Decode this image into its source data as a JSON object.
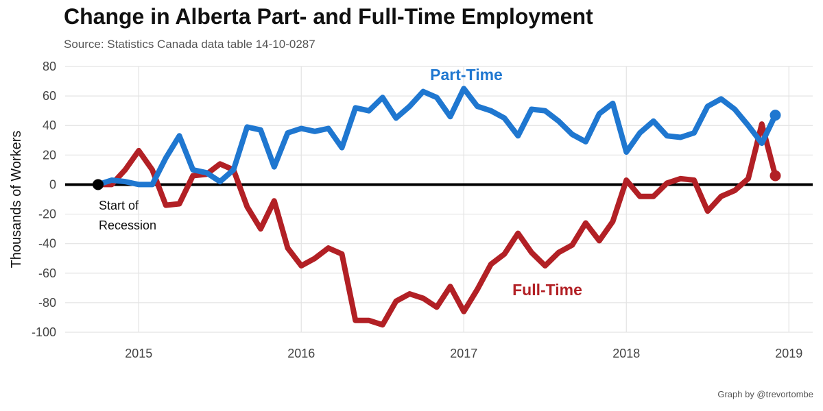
{
  "chart_data": {
    "type": "line",
    "title": "Change in Alberta Part- and Full-Time Employment",
    "subtitle": "Source: Statistics Canada data table 14-10-0287",
    "ylabel": "Thousands of Workers",
    "xlabel": "",
    "ylim": [
      -100,
      80
    ],
    "yticks": [
      "80",
      "60",
      "40",
      "20",
      "0",
      "-20",
      "-40",
      "-60",
      "-80",
      "-100"
    ],
    "xticks": [
      "2015",
      "2016",
      "2017",
      "2018",
      "2019"
    ],
    "x_start_month": "2014-10",
    "x_step": "monthly",
    "series": [
      {
        "name": "Part-Time",
        "color": "#1f77d0",
        "values": [
          0,
          3,
          2,
          0,
          0,
          18,
          33,
          10,
          8,
          2,
          10,
          39,
          37,
          12,
          35,
          38,
          36,
          38,
          25,
          52,
          50,
          59,
          45,
          53,
          63,
          59,
          46,
          65,
          53,
          50,
          45,
          33,
          51,
          50,
          43,
          34,
          29,
          48,
          55,
          22,
          35,
          43,
          33,
          32,
          35,
          53,
          58,
          51,
          40,
          28,
          47
        ]
      },
      {
        "name": "Full-Time",
        "color": "#b22025",
        "values": [
          0,
          0,
          10,
          23,
          10,
          -14,
          -13,
          6,
          7,
          14,
          10,
          -15,
          -30,
          -11,
          -43,
          -55,
          -50,
          -43,
          -47,
          -92,
          -92,
          -95,
          -79,
          -74,
          -77,
          -83,
          -69,
          -86,
          -71,
          -54,
          -47,
          -33,
          -46,
          -55,
          -46,
          -41,
          -26,
          -38,
          -25,
          3,
          -8,
          -8,
          1,
          4,
          3,
          -18,
          -8,
          -4,
          4,
          41,
          6
        ]
      }
    ],
    "annotations": [
      {
        "text_lines": [
          "Start of",
          "Recession"
        ],
        "at": "2014-10",
        "value": 0
      },
      {
        "text": "Part-Time",
        "series": "Part-Time"
      },
      {
        "text": "Full-Time",
        "series": "Full-Time"
      }
    ],
    "credit": "Graph by @trevortombe"
  }
}
